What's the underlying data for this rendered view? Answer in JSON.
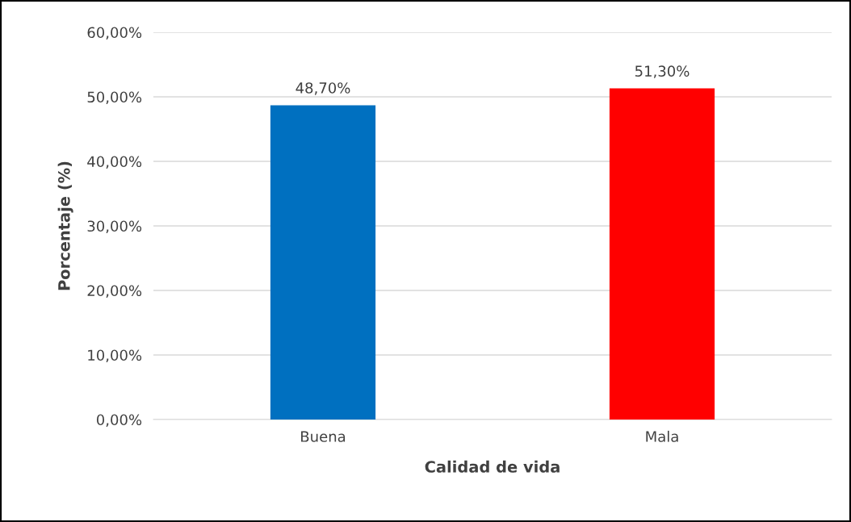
{
  "chart_data": {
    "type": "bar",
    "xlabel": "Calidad de vida",
    "ylabel": "Porcentaje (%)",
    "categories": [
      "Buena",
      "Mala"
    ],
    "values": [
      48.7,
      51.3
    ],
    "colors": [
      "#0070c0",
      "#ff0000"
    ],
    "value_labels": [
      "48,70%",
      "51,30%"
    ],
    "ylim": [
      0,
      60
    ],
    "yticks": [
      {
        "value": 0,
        "label": "0,00%"
      },
      {
        "value": 10,
        "label": "10,00%"
      },
      {
        "value": 20,
        "label": "20,00%"
      },
      {
        "value": 30,
        "label": "30,00%"
      },
      {
        "value": 40,
        "label": "40,00%"
      },
      {
        "value": 50,
        "label": "50,00%"
      },
      {
        "value": 60,
        "label": "60,00%"
      }
    ],
    "grid": "y",
    "legend": false
  }
}
